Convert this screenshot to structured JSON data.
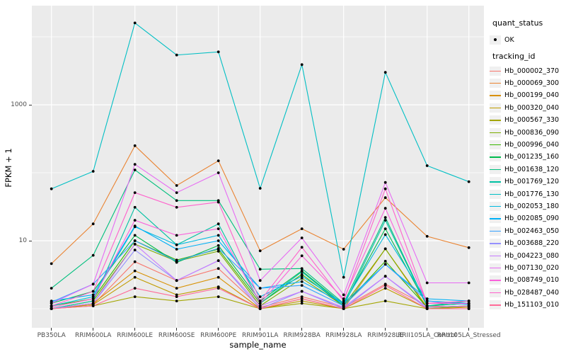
{
  "chart_data": {
    "type": "line",
    "title": "",
    "xlabel": "sample_name",
    "ylabel": "FPKM + 1",
    "y_scale": "log10",
    "ylim": [
      0.52,
      29000
    ],
    "grid": true,
    "legend_position": "right",
    "y_ticks": [
      {
        "label": "1000",
        "value": 1000
      },
      {
        "label": "10",
        "value": 10
      }
    ],
    "y_minor_gridline_values": [
      1,
      100,
      10000
    ],
    "categories": [
      "PB350LA",
      "RRIM600LA",
      "RRIM600LE",
      "RRIM600SE",
      "RRIM600PE",
      "RRIM901LA",
      "RRIM928BA",
      "RRIM928LA",
      "RRIM928LE",
      "RRII105LA_Control",
      "RRII105LA_Stressed"
    ],
    "point_shape": "filled-circle",
    "point_color": "#000000",
    "series": [
      {
        "name": "Hb_000002_370",
        "color": "#F8766D",
        "values": [
          1.0,
          1.15,
          4.9,
          2.6,
          3.9,
          1.05,
          1.5,
          1.05,
          2.3,
          1.1,
          1.05
        ]
      },
      {
        "name": "Hb_000069_300",
        "color": "#EA8331",
        "values": [
          4.6,
          17.7,
          250,
          65,
          150,
          7.1,
          15,
          7.5,
          43,
          11.6,
          7.9
        ]
      },
      {
        "name": "Hb_000199_040",
        "color": "#D89000",
        "values": [
          1.0,
          1.2,
          3.6,
          2.0,
          2.9,
          1.0,
          1.4,
          1.0,
          7.6,
          1.05,
          1.1
        ]
      },
      {
        "name": "Hb_000320_040",
        "color": "#C09B00",
        "values": [
          1.0,
          1.15,
          2.9,
          1.6,
          2.1,
          1.0,
          1.3,
          1.0,
          2.0,
          1.0,
          1.05
        ]
      },
      {
        "name": "Hb_000567_330",
        "color": "#A3A500",
        "values": [
          1.0,
          1.1,
          1.5,
          1.3,
          1.5,
          1.0,
          1.2,
          1.0,
          1.3,
          1.0,
          1.0
        ]
      },
      {
        "name": "Hb_000836_090",
        "color": "#7CAE00",
        "values": [
          1.0,
          1.3,
          8.9,
          5.0,
          7.0,
          1.1,
          2.8,
          1.1,
          7.6,
          1.0,
          1.1
        ]
      },
      {
        "name": "Hb_000996_040",
        "color": "#39B600",
        "values": [
          1.1,
          1.4,
          10,
          5.2,
          7.5,
          1.2,
          3.2,
          1.1,
          5.0,
          1.05,
          1.1
        ]
      },
      {
        "name": "Hb_001235_160",
        "color": "#00BB4E",
        "values": [
          1.2,
          1.8,
          12,
          4.8,
          8.5,
          1.3,
          3.6,
          1.15,
          15,
          1.1,
          1.2
        ]
      },
      {
        "name": "Hb_001638_120",
        "color": "#00BF7D",
        "values": [
          2.0,
          6.1,
          110,
          39,
          39,
          3.8,
          3.9,
          1.2,
          22,
          1.1,
          1.3
        ]
      },
      {
        "name": "Hb_001769_120",
        "color": "#00C1A3",
        "values": [
          1.0,
          1.3,
          31,
          8.7,
          17.7,
          1.2,
          3.5,
          1.1,
          20,
          1.1,
          1.2
        ]
      },
      {
        "name": "Hb_001776_130",
        "color": "#00BFC4",
        "values": [
          58,
          105,
          16000,
          5400,
          6000,
          59,
          3900,
          2.9,
          3000,
          127,
          74
        ]
      },
      {
        "name": "Hb_002053_180",
        "color": "#00BAE0",
        "values": [
          1.1,
          1.5,
          16,
          8.7,
          12,
          1.5,
          3.0,
          1.2,
          12.3,
          1.3,
          1.2
        ]
      },
      {
        "name": "Hb_002085_090",
        "color": "#00B0F6",
        "values": [
          1.3,
          1.6,
          16.5,
          7.5,
          10,
          2.0,
          2.5,
          1.2,
          4.5,
          1.4,
          1.3
        ]
      },
      {
        "name": "Hb_002463_050",
        "color": "#35A2FF",
        "values": [
          1.25,
          2.3,
          10,
          5.0,
          7.7,
          2.0,
          2.2,
          1.1,
          4.5,
          1.3,
          1.15
        ]
      },
      {
        "name": "Hb_003688_220",
        "color": "#9590FF",
        "values": [
          1.0,
          1.2,
          7.3,
          2.6,
          5.1,
          1.0,
          1.8,
          1.0,
          3.0,
          1.0,
          1.0
        ]
      },
      {
        "name": "Hb_004223_080",
        "color": "#C77CFF",
        "values": [
          1.0,
          1.2,
          8.9,
          2.6,
          5.1,
          1.1,
          1.8,
          1.05,
          3.0,
          1.05,
          1.1
        ]
      },
      {
        "name": "Hb_007130_020",
        "color": "#E76BF3",
        "values": [
          1.2,
          2.3,
          133,
          51,
          100,
          2.6,
          11,
          1.6,
          72,
          2.4,
          2.4
        ]
      },
      {
        "name": "Hb_008749_010",
        "color": "#FA62DB",
        "values": [
          1.05,
          1.4,
          20,
          12,
          15,
          1.2,
          6.0,
          1.4,
          30,
          1.2,
          1.2
        ]
      },
      {
        "name": "Hb_028487_040",
        "color": "#FF61CC",
        "values": [
          1.1,
          1.8,
          51,
          31,
          37,
          1.3,
          8.0,
          1.3,
          58,
          1.2,
          1.3
        ]
      },
      {
        "name": "Hb_151103_010",
        "color": "#FF6A98",
        "values": [
          1.0,
          1.1,
          2.0,
          1.5,
          2.0,
          1.0,
          1.4,
          1.0,
          2.2,
          1.0,
          1.0
        ]
      }
    ]
  },
  "legend": {
    "quant_status_title": "quant_status",
    "quant_status_items": [
      {
        "label": "OK",
        "shape": "point"
      }
    ],
    "tracking_title": "tracking_id"
  },
  "colors": {
    "panel_bg": "#EBEBEB",
    "grid": "#FFFFFF",
    "tick_label": "#4D4D4D",
    "axis_title": "#000000",
    "page_bg": "#FFFFFF",
    "legend_key_bg": "#F0F0F0"
  }
}
